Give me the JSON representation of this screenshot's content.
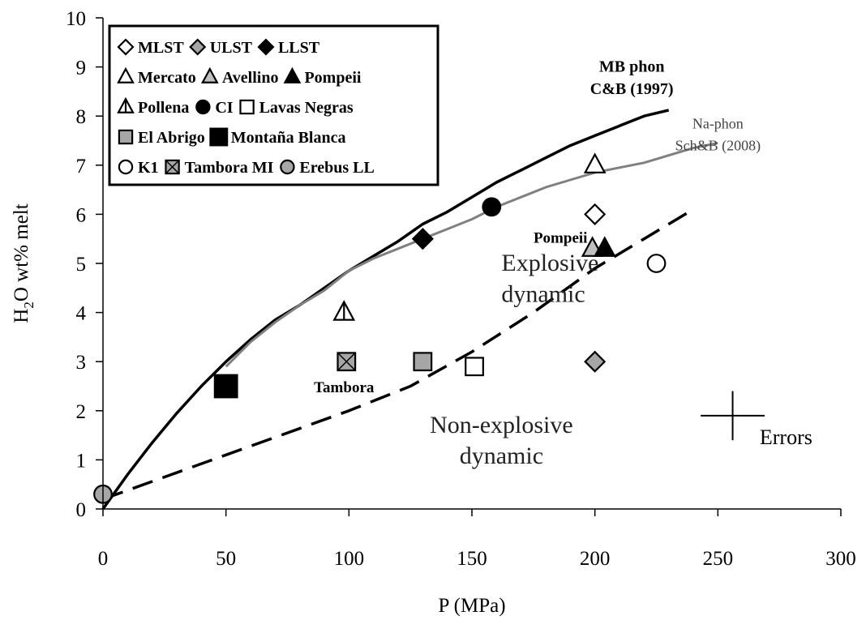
{
  "chart_data": {
    "type": "scatter",
    "title": "",
    "xlabel": "P (MPa)",
    "ylabel_parts": {
      "prefix": "H",
      "subscript": "2",
      "suffix": "O wt% melt"
    },
    "xlim": [
      0,
      300
    ],
    "ylim": [
      0,
      10
    ],
    "xticks": [
      0,
      50,
      100,
      150,
      200,
      250,
      300
    ],
    "yticks": [
      0,
      1,
      2,
      3,
      4,
      5,
      6,
      7,
      8,
      9,
      10
    ],
    "grid": false,
    "legend_placement": "top-left",
    "legend_rows": [
      [
        {
          "key": "mlst",
          "label": "MLST"
        },
        {
          "key": "ulst",
          "label": "ULST"
        },
        {
          "key": "llst",
          "label": "LLST"
        }
      ],
      [
        {
          "key": "mercato",
          "label": "Mercato"
        },
        {
          "key": "avellino",
          "label": "Avellino"
        },
        {
          "key": "pompeii",
          "label": "Pompeii"
        }
      ],
      [
        {
          "key": "pollena",
          "label": "Pollena"
        },
        {
          "key": "ci",
          "label": "CI"
        },
        {
          "key": "lavas_negras",
          "label": "Lavas Negras"
        }
      ],
      [
        {
          "key": "el_abrigo",
          "label": "El Abrigo"
        },
        {
          "key": "montana_blanca",
          "label": "Montaña Blanca"
        }
      ],
      [
        {
          "key": "k1",
          "label": "K1"
        },
        {
          "key": "tambora_mi",
          "label": "Tambora MI"
        },
        {
          "key": "erebus_ll",
          "label": "Erebus LL"
        }
      ]
    ],
    "series": [
      {
        "key": "mlst",
        "marker": "diamond",
        "fill": "#ffffff",
        "stroke": "#000000",
        "points": [
          [
            200,
            6.0
          ]
        ]
      },
      {
        "key": "ulst",
        "marker": "diamond",
        "fill": "#a6a6a6",
        "stroke": "#000000",
        "points": [
          [
            200,
            3.0
          ]
        ]
      },
      {
        "key": "llst",
        "marker": "diamond",
        "fill": "#000000",
        "stroke": "#000000",
        "points": [
          [
            130,
            5.5
          ]
        ]
      },
      {
        "key": "mercato",
        "marker": "triangle",
        "fill": "#ffffff",
        "stroke": "#000000",
        "points": [
          [
            200,
            7.0
          ]
        ]
      },
      {
        "key": "avellino",
        "marker": "triangle",
        "fill": "#c0c0c0",
        "stroke": "#000000",
        "points": [
          [
            199,
            5.3
          ]
        ]
      },
      {
        "key": "pompeii",
        "marker": "triangle",
        "fill": "#000000",
        "stroke": "#000000",
        "points": [
          [
            204,
            5.3
          ]
        ]
      },
      {
        "key": "pollena",
        "marker": "triangle-bar",
        "fill": "#ffffff",
        "stroke": "#000000",
        "points": [
          [
            98,
            4.0
          ]
        ]
      },
      {
        "key": "ci",
        "marker": "circle",
        "fill": "#000000",
        "stroke": "#000000",
        "points": [
          [
            158,
            6.15
          ]
        ]
      },
      {
        "key": "lavas_negras",
        "marker": "square",
        "fill": "#ffffff",
        "stroke": "#000000",
        "points": [
          [
            151,
            2.9
          ]
        ]
      },
      {
        "key": "el_abrigo",
        "marker": "square",
        "fill": "#a6a6a6",
        "stroke": "#000000",
        "points": [
          [
            130,
            3.0
          ]
        ]
      },
      {
        "key": "montana_blanca",
        "marker": "square-large",
        "fill": "#000000",
        "stroke": "#000000",
        "points": [
          [
            50,
            2.5
          ]
        ]
      },
      {
        "key": "k1",
        "marker": "circle",
        "fill": "#ffffff",
        "stroke": "#000000",
        "points": [
          [
            225,
            5.0
          ]
        ]
      },
      {
        "key": "tambora_mi",
        "marker": "square-x",
        "fill": "#a6a6a6",
        "stroke": "#000000",
        "points": [
          [
            99,
            3.0
          ]
        ]
      },
      {
        "key": "erebus_ll",
        "marker": "circle",
        "fill": "#a6a6a6",
        "stroke": "#000000",
        "points": [
          [
            0,
            0.3
          ]
        ]
      }
    ],
    "curves": [
      {
        "key": "mb_phon",
        "style": "solid",
        "color": "#000000",
        "width": 3.5,
        "points": [
          [
            0,
            0
          ],
          [
            10,
            0.7
          ],
          [
            20,
            1.35
          ],
          [
            30,
            1.95
          ],
          [
            40,
            2.5
          ],
          [
            50,
            3.0
          ],
          [
            60,
            3.45
          ],
          [
            70,
            3.85
          ],
          [
            80,
            4.15
          ],
          [
            90,
            4.5
          ],
          [
            100,
            4.85
          ],
          [
            110,
            5.15
          ],
          [
            120,
            5.45
          ],
          [
            130,
            5.8
          ],
          [
            140,
            6.05
          ],
          [
            150,
            6.35
          ],
          [
            160,
            6.65
          ],
          [
            170,
            6.9
          ],
          [
            180,
            7.15
          ],
          [
            190,
            7.4
          ],
          [
            200,
            7.6
          ],
          [
            210,
            7.8
          ],
          [
            220,
            8.0
          ],
          [
            230,
            8.12
          ]
        ]
      },
      {
        "key": "na_phon",
        "style": "solid",
        "color": "#808080",
        "width": 3,
        "points": [
          [
            50,
            2.9
          ],
          [
            60,
            3.4
          ],
          [
            70,
            3.8
          ],
          [
            80,
            4.15
          ],
          [
            90,
            4.45
          ],
          [
            100,
            4.85
          ],
          [
            110,
            5.1
          ],
          [
            120,
            5.3
          ],
          [
            130,
            5.5
          ],
          [
            140,
            5.7
          ],
          [
            150,
            5.9
          ],
          [
            160,
            6.15
          ],
          [
            170,
            6.35
          ],
          [
            180,
            6.55
          ],
          [
            190,
            6.7
          ],
          [
            200,
            6.85
          ],
          [
            210,
            6.95
          ],
          [
            220,
            7.05
          ],
          [
            230,
            7.2
          ],
          [
            240,
            7.35
          ],
          [
            250,
            7.45
          ]
        ]
      },
      {
        "key": "boundary",
        "style": "dashed",
        "color": "#000000",
        "width": 3.5,
        "points": [
          [
            0,
            0.2
          ],
          [
            25,
            0.65
          ],
          [
            50,
            1.1
          ],
          [
            75,
            1.55
          ],
          [
            100,
            2.0
          ],
          [
            125,
            2.5
          ],
          [
            150,
            3.2
          ],
          [
            175,
            4.0
          ],
          [
            200,
            4.9
          ],
          [
            220,
            5.5
          ],
          [
            240,
            6.1
          ]
        ]
      }
    ],
    "error_bar": {
      "x": 256,
      "y": 1.9,
      "xerr": 13,
      "yerr": 0.5
    },
    "annotations": {
      "mb_phon_line1": {
        "text": "MB phon",
        "x": 215,
        "y": 8.9
      },
      "mb_phon_line2": {
        "text": "C&B (1997)",
        "x": 215,
        "y": 8.45
      },
      "na_phon_line1": {
        "text": "Na-phon",
        "x": 250,
        "y": 7.75
      },
      "na_phon_line2": {
        "text": "Sch&B (2008)",
        "x": 250,
        "y": 7.3
      },
      "explosive_line1": {
        "text": "Explosive",
        "x": 162,
        "y": 4.85
      },
      "explosive_line2": {
        "text": "dynamic",
        "x": 162,
        "y": 4.22
      },
      "nonexplosive_line1": {
        "text": "Non-explosive",
        "x": 162,
        "y": 1.55
      },
      "nonexplosive_line2": {
        "text": "dynamic",
        "x": 162,
        "y": 0.92
      },
      "pompeii_label": {
        "text": "Pompeii",
        "x": 186,
        "y": 5.42
      },
      "tambora_label": {
        "text": "Tambora",
        "x": 98,
        "y": 2.38
      },
      "errors_label": {
        "text": "Errors",
        "x": 267,
        "y": 1.32
      }
    }
  }
}
